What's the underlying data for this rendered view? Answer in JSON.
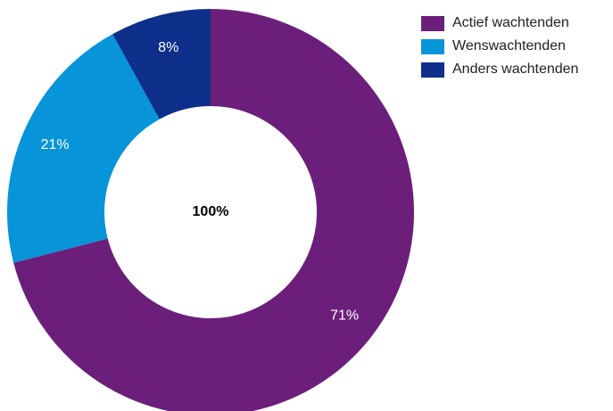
{
  "chart_data": {
    "type": "pie",
    "donut": true,
    "center_label": "100%",
    "legend_position": "top-right",
    "slices": [
      {
        "name": "Actief wachtenden",
        "value": 71,
        "label": "71%",
        "color": "#6b1f7a"
      },
      {
        "name": "Wenswachtenden",
        "value": 21,
        "label": "21%",
        "color": "#0894d8"
      },
      {
        "name": "Anders wachtenden",
        "value": 8,
        "label": "8%",
        "color": "#0e2f8a"
      }
    ]
  }
}
